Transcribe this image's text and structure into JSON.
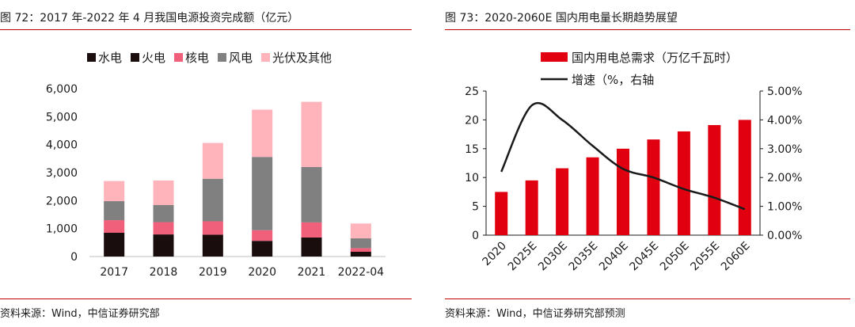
{
  "left": {
    "title": "图 72：2017 年-2022 年 4 月我国电源投资完成额（亿元）",
    "source": "资料来源：Wind，中信证券研究部"
  },
  "right": {
    "title": "图 73：2020-2060E 国内用电量长期趋势展望",
    "source": "资料来源：Wind，中信证券研究部预测"
  },
  "chart_data": [
    {
      "type": "bar",
      "stacked": true,
      "categories": [
        "2017",
        "2018",
        "2019",
        "2020",
        "2021",
        "2022-04"
      ],
      "series": [
        {
          "name": "水电",
          "color": "#1a0d0d",
          "values": [
            850,
            790,
            780,
            560,
            680,
            170
          ]
        },
        {
          "name": "火电",
          "color": "#1a0d0d",
          "values": [
            0,
            0,
            0,
            0,
            0,
            0
          ]
        },
        {
          "name": "核电",
          "color": "#f0607a",
          "values": [
            450,
            440,
            480,
            380,
            540,
            130
          ]
        },
        {
          "name": "风电",
          "color": "#808080",
          "values": [
            680,
            610,
            1520,
            2620,
            1980,
            350
          ]
        },
        {
          "name": "光伏及其他",
          "color": "#ffb3ba",
          "values": [
            720,
            880,
            1280,
            1690,
            2330,
            530
          ]
        }
      ],
      "y_ticks": [
        "0",
        "1,000",
        "2,000",
        "3,000",
        "4,000",
        "5,000",
        "6,000"
      ],
      "ylim": [
        0,
        6000
      ],
      "legend_position": "top",
      "grid": false
    },
    {
      "type": "bar+line",
      "categories": [
        "2020",
        "2025E",
        "2030E",
        "2035E",
        "2040E",
        "2045E",
        "2050E",
        "2055E",
        "2060E"
      ],
      "series": [
        {
          "name": "国内用电总需求（万亿千瓦时）",
          "type": "bar",
          "axis": "left",
          "color": "#e00010",
          "values": [
            7.5,
            9.5,
            11.6,
            13.5,
            15.0,
            16.6,
            18.0,
            19.1,
            20.0
          ]
        },
        {
          "name": "增速（%，右轴",
          "type": "line",
          "axis": "right",
          "color": "#1a1a1a",
          "values": [
            2.2,
            4.5,
            4.0,
            3.1,
            2.3,
            2.0,
            1.6,
            1.3,
            0.9
          ]
        }
      ],
      "y_left_ticks": [
        "0",
        "5",
        "10",
        "15",
        "20",
        "25"
      ],
      "y_left_lim": [
        0,
        25
      ],
      "y_right_ticks": [
        "0.00%",
        "1.00%",
        "2.00%",
        "3.00%",
        "4.00%",
        "5.00%"
      ],
      "y_right_lim": [
        0,
        5
      ],
      "legend_position": "top",
      "grid": false
    }
  ]
}
